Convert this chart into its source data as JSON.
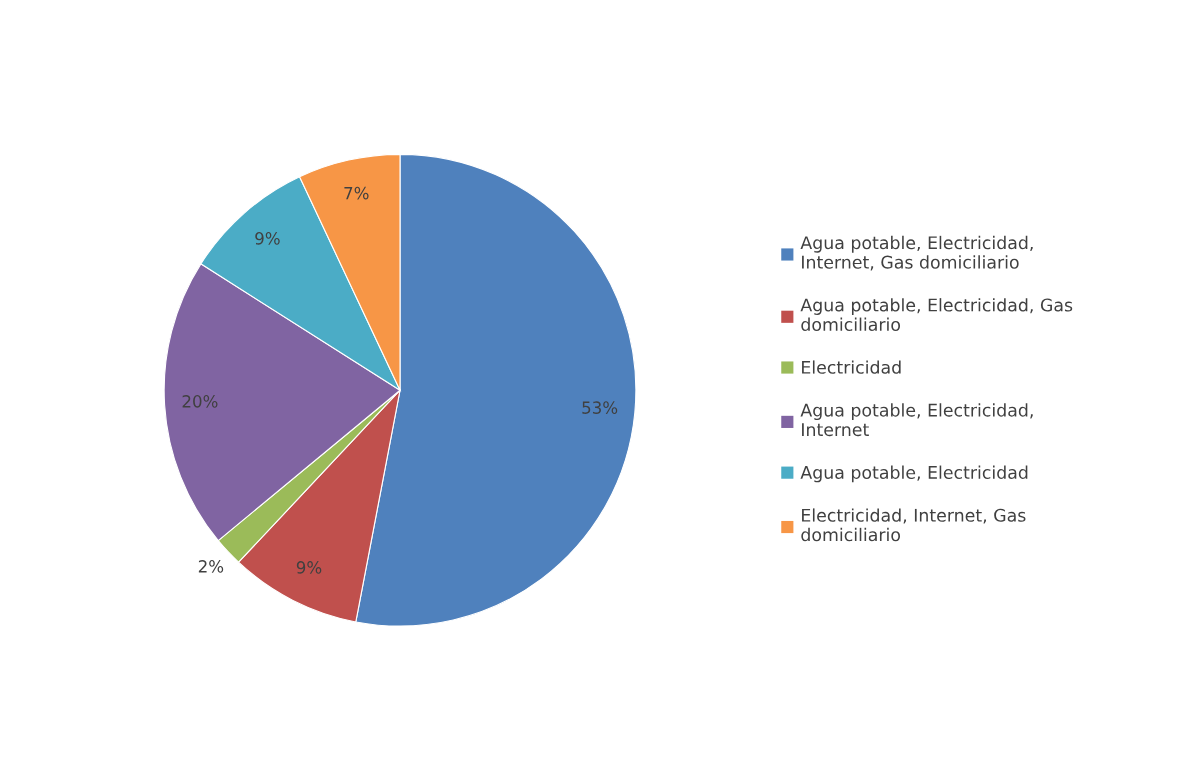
{
  "chart_data": {
    "type": "pie",
    "categories": [
      "Agua potable, Electricidad, Internet, Gas domiciliario",
      "Agua potable, Electricidad, Gas domiciliario",
      "Electricidad",
      "Agua potable, Electricidad, Internet",
      "Agua potable, Electricidad",
      "Electricidad, Internet, Gas domiciliario"
    ],
    "values": [
      53,
      9,
      2,
      20,
      9,
      7
    ],
    "colors": [
      "#4f81bd",
      "#c0504d",
      "#9bbb59",
      "#8064a2",
      "#4bacc6",
      "#f79646"
    ],
    "value_labels": [
      "53%",
      "9%",
      "2%",
      "20%",
      "9%",
      "7%"
    ],
    "legend": "right"
  }
}
